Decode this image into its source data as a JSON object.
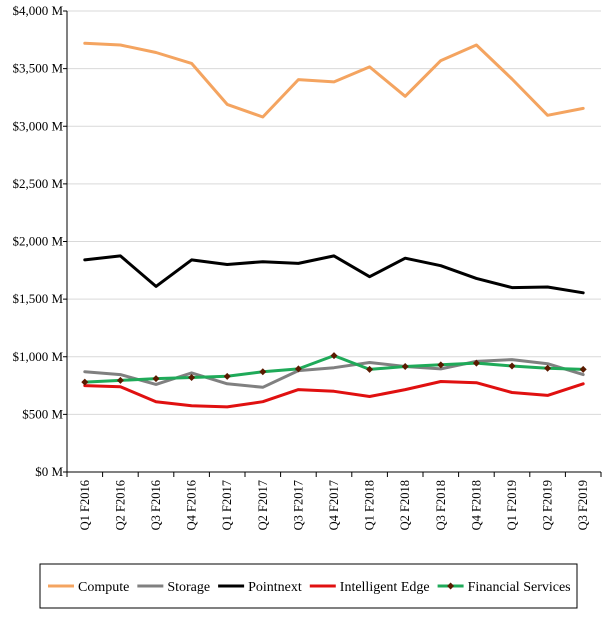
{
  "chart_data": {
    "type": "line",
    "title": "",
    "xlabel": "",
    "ylabel": "",
    "ylim": [
      0,
      4000
    ],
    "y_ticks": [
      0,
      500,
      1000,
      1500,
      2000,
      2500,
      3000,
      3500,
      4000
    ],
    "y_tick_labels": [
      "$0 M",
      "$500 M",
      "$1,000 M",
      "$1,500 M",
      "$2,000 M",
      "$2,500 M",
      "$3,000 M",
      "$3,500 M",
      "$4,000 M"
    ],
    "categories": [
      "Q1 F2016",
      "Q2 F2016",
      "Q3 F2016",
      "Q4 F2016",
      "Q1 F2017",
      "Q2 F2017",
      "Q3 F2017",
      "Q4 F2017",
      "Q1 F2018",
      "Q2 F2018",
      "Q3 F2018",
      "Q4 F2018",
      "Q1 F2019",
      "Q2 F2019",
      "Q3 F2019"
    ],
    "grid": "horizontal",
    "legend_position": "bottom",
    "series": [
      {
        "name": "Compute",
        "color": "#F4A460",
        "marker": "none",
        "values": [
          3720,
          3705,
          3640,
          3545,
          3190,
          3080,
          3405,
          3385,
          3515,
          3260,
          3570,
          3705,
          3410,
          3095,
          3155
        ]
      },
      {
        "name": "Storage",
        "color": "#808080",
        "marker": "none",
        "values": [
          870,
          845,
          760,
          860,
          765,
          735,
          880,
          905,
          950,
          915,
          895,
          960,
          975,
          940,
          845
        ]
      },
      {
        "name": "Pointnext",
        "color": "#000000",
        "marker": "none",
        "values": [
          1840,
          1875,
          1610,
          1840,
          1800,
          1825,
          1810,
          1875,
          1695,
          1855,
          1790,
          1680,
          1600,
          1605,
          1555
        ]
      },
      {
        "name": "Intelligent Edge",
        "color": "#E01010",
        "marker": "none",
        "values": [
          750,
          740,
          610,
          575,
          565,
          610,
          715,
          700,
          655,
          715,
          785,
          775,
          690,
          665,
          765
        ]
      },
      {
        "name": "Financial Services",
        "color": "#1FAA59",
        "marker": "diamond",
        "marker_color": "#5A1A00",
        "values": [
          780,
          795,
          810,
          820,
          830,
          870,
          895,
          1010,
          890,
          915,
          930,
          945,
          920,
          900,
          890
        ]
      }
    ]
  }
}
